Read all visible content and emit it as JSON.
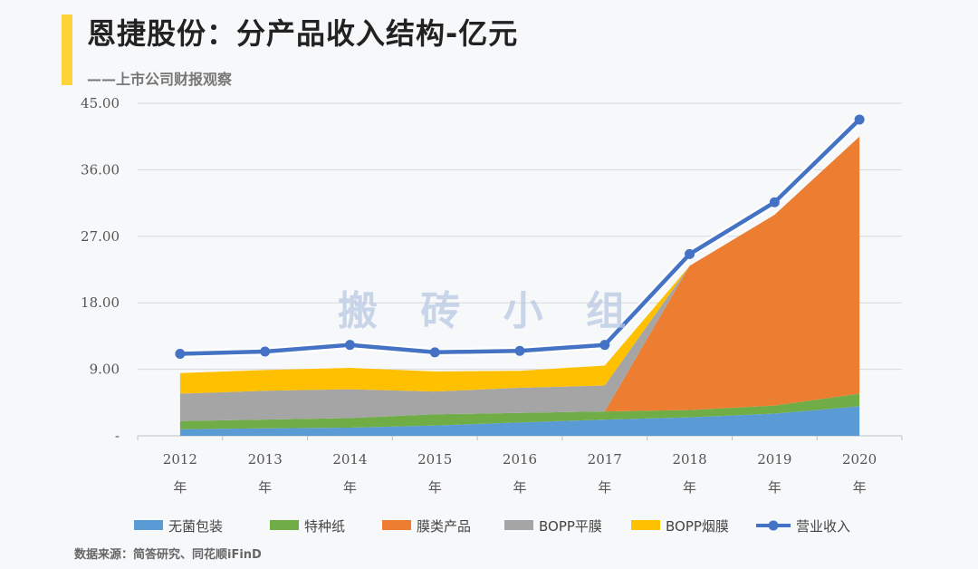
{
  "header": {
    "title": "恩捷股份：分产品收入结构-亿元",
    "subtitle": "——上市公司财报观察",
    "accent_color": "#ffd43b"
  },
  "footer": {
    "source": "数据来源：简答研究、同花顺iFinD"
  },
  "watermark": "搬 砖 小 组",
  "chart_data": {
    "type": "area",
    "title": "恩捷股份：分产品收入结构-亿元",
    "categories": [
      "2012\n年",
      "2013\n年",
      "2014\n年",
      "2015\n年",
      "2016\n年",
      "2017\n年",
      "2018\n年",
      "2019\n年",
      "2020\n年"
    ],
    "ylim": [
      0,
      45
    ],
    "yticks": [
      "-",
      "9.00",
      "18.00",
      "27.00",
      "36.00",
      "45.00"
    ],
    "ytick_values": [
      0,
      9,
      18,
      27,
      36,
      45
    ],
    "grid": true,
    "legend_position": "bottom",
    "stacked_series": [
      {
        "name": "无菌包装",
        "color": "#5b9bd5",
        "values": [
          0.9,
          1.0,
          1.1,
          1.4,
          1.8,
          2.2,
          2.5,
          3.0,
          4.0
        ]
      },
      {
        "name": "特种纸",
        "color": "#70ad47",
        "values": [
          1.1,
          1.2,
          1.3,
          1.5,
          1.3,
          1.1,
          1.0,
          1.1,
          1.7
        ]
      },
      {
        "name": "膜类产品",
        "color": "#ed7d31",
        "values": [
          0,
          0,
          0,
          0,
          0,
          0,
          19.5,
          25.8,
          34.8
        ]
      },
      {
        "name": "BOPP平膜",
        "color": "#a5a5a5",
        "values": [
          3.7,
          3.9,
          3.9,
          3.1,
          3.4,
          3.5,
          0,
          0,
          0
        ]
      },
      {
        "name": "BOPP烟膜",
        "color": "#ffc000",
        "values": [
          2.8,
          2.8,
          2.9,
          2.7,
          2.3,
          2.7,
          0,
          0,
          0
        ]
      }
    ],
    "line_series": [
      {
        "name": "营业收入",
        "color": "#4472c4",
        "values": [
          11.1,
          11.4,
          12.3,
          11.3,
          11.5,
          12.3,
          24.6,
          31.6,
          42.8
        ]
      }
    ]
  }
}
